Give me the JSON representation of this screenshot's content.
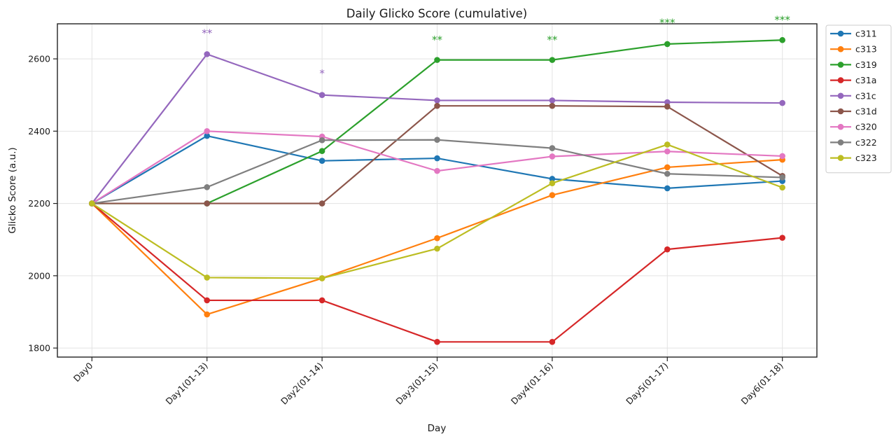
{
  "chart_data": {
    "type": "line",
    "title": "Daily Glicko Score (cumulative)",
    "xlabel": "Day",
    "ylabel": "Glicko Score (a.u.)",
    "categories": [
      "Day0",
      "Day1(01-13)",
      "Day2(01-14)",
      "Day3(01-15)",
      "Day4(01-16)",
      "Day5(01-17)",
      "Day6(01-18)"
    ],
    "series": [
      {
        "name": "c311",
        "color": "#1f77b4",
        "values": [
          2200,
          2387,
          2318,
          2325,
          2268,
          2242,
          2262
        ]
      },
      {
        "name": "c313",
        "color": "#ff7f0e",
        "values": [
          2200,
          1893,
          1993,
          2104,
          2223,
          2300,
          2321
        ]
      },
      {
        "name": "c319",
        "color": "#2ca02c",
        "values": [
          2200,
          2200,
          2345,
          2597,
          2597,
          2641,
          2652
        ]
      },
      {
        "name": "c31a",
        "color": "#d62728",
        "values": [
          2200,
          1932,
          1932,
          1817,
          1817,
          2073,
          2105
        ]
      },
      {
        "name": "c31c",
        "color": "#9467bd",
        "values": [
          2200,
          2613,
          2500,
          2485,
          2485,
          2480,
          2478
        ]
      },
      {
        "name": "c31d",
        "color": "#8c564b",
        "values": [
          2200,
          2200,
          2200,
          2470,
          2470,
          2468,
          2276
        ]
      },
      {
        "name": "c320",
        "color": "#e377c2",
        "values": [
          2200,
          2400,
          2385,
          2290,
          2330,
          2344,
          2331
        ]
      },
      {
        "name": "c322",
        "color": "#7f7f7f",
        "values": [
          2200,
          2245,
          2375,
          2376,
          2353,
          2282,
          2272
        ]
      },
      {
        "name": "c323",
        "color": "#bcbd22",
        "values": [
          2200,
          1995,
          1993,
          2075,
          2256,
          2363,
          2244
        ]
      }
    ],
    "annotations": [
      {
        "category_index": 1,
        "text": "**",
        "color": "#9467bd",
        "value": 2671
      },
      {
        "category_index": 2,
        "text": "*",
        "color": "#9467bd",
        "value": 2559
      },
      {
        "category_index": 3,
        "text": "**",
        "color": "#2ca02c",
        "value": 2652
      },
      {
        "category_index": 4,
        "text": "**",
        "color": "#2ca02c",
        "value": 2652
      },
      {
        "category_index": 5,
        "text": "***",
        "color": "#2ca02c",
        "value": 2700
      },
      {
        "category_index": 6,
        "text": "***",
        "color": "#2ca02c",
        "value": 2708
      }
    ],
    "yticks": [
      1800,
      2000,
      2200,
      2400,
      2600
    ],
    "ylim": [
      1775,
      2697
    ],
    "xlim": [
      -0.3,
      6.3
    ],
    "grid": true,
    "legend_position": "outside-upper-right",
    "x_tick_rotation_deg": 45
  },
  "style": {
    "background": "#ffffff",
    "text_color": "#1a1a1a",
    "grid_color": "#e3e3e3",
    "spine_color": "#222222",
    "legend_border": "#cccccc",
    "legend_background": "#ffffff"
  }
}
